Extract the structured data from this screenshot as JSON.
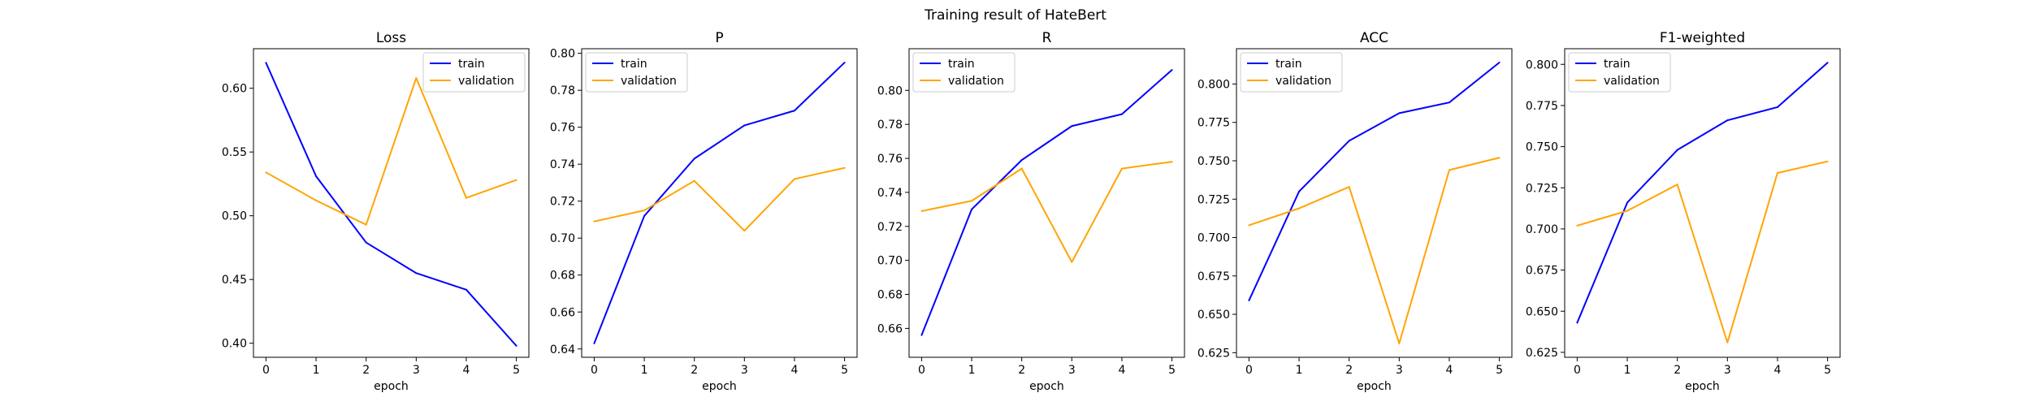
{
  "figure": {
    "title": "Training result of HateBert"
  },
  "colors": {
    "train": "#0000ff",
    "validation": "#ffa500",
    "axes": "#000000",
    "legend_border": "#cccccc"
  },
  "chart_data": [
    {
      "type": "line",
      "title": "Loss",
      "xlabel": "epoch",
      "ylabel": "",
      "x": [
        0,
        1,
        2,
        3,
        4,
        5
      ],
      "xlim": [
        -0.25,
        5.25
      ],
      "ylim": [
        0.389,
        0.631
      ],
      "yticks": [
        0.4,
        0.45,
        0.5,
        0.55,
        0.6
      ],
      "ytick_labels": [
        "0.40",
        "0.45",
        "0.50",
        "0.55",
        "0.60"
      ],
      "legend": "upper right",
      "series": [
        {
          "name": "train",
          "color": "#0000ff",
          "values": [
            0.62,
            0.531,
            0.479,
            0.455,
            0.442,
            0.398
          ]
        },
        {
          "name": "validation",
          "color": "#ffa500",
          "values": [
            0.534,
            0.512,
            0.493,
            0.608,
            0.514,
            0.528
          ]
        }
      ]
    },
    {
      "type": "line",
      "title": "P",
      "xlabel": "epoch",
      "ylabel": "",
      "x": [
        0,
        1,
        2,
        3,
        4,
        5
      ],
      "xlim": [
        -0.25,
        5.25
      ],
      "ylim": [
        0.6355,
        0.8025
      ],
      "yticks": [
        0.64,
        0.66,
        0.68,
        0.7,
        0.72,
        0.74,
        0.76,
        0.78,
        0.8
      ],
      "ytick_labels": [
        "0.64",
        "0.66",
        "0.68",
        "0.70",
        "0.72",
        "0.74",
        "0.76",
        "0.78",
        "0.80"
      ],
      "legend": "upper left",
      "series": [
        {
          "name": "train",
          "color": "#0000ff",
          "values": [
            0.643,
            0.712,
            0.743,
            0.761,
            0.769,
            0.795
          ]
        },
        {
          "name": "validation",
          "color": "#ffa500",
          "values": [
            0.709,
            0.715,
            0.731,
            0.704,
            0.732,
            0.738
          ]
        }
      ]
    },
    {
      "type": "line",
      "title": "R",
      "xlabel": "epoch",
      "ylabel": "",
      "x": [
        0,
        1,
        2,
        3,
        4,
        5
      ],
      "xlim": [
        -0.25,
        5.25
      ],
      "ylim": [
        0.643,
        0.8245
      ],
      "yticks": [
        0.66,
        0.68,
        0.7,
        0.72,
        0.74,
        0.76,
        0.78,
        0.8
      ],
      "ytick_labels": [
        "0.66",
        "0.68",
        "0.70",
        "0.72",
        "0.74",
        "0.76",
        "0.78",
        "0.80"
      ],
      "legend": "upper left",
      "series": [
        {
          "name": "train",
          "color": "#0000ff",
          "values": [
            0.656,
            0.73,
            0.759,
            0.779,
            0.786,
            0.812
          ]
        },
        {
          "name": "validation",
          "color": "#ffa500",
          "values": [
            0.729,
            0.735,
            0.754,
            0.699,
            0.754,
            0.758
          ]
        }
      ]
    },
    {
      "type": "line",
      "title": "ACC",
      "xlabel": "epoch",
      "ylabel": "",
      "x": [
        0,
        1,
        2,
        3,
        4,
        5
      ],
      "xlim": [
        -0.25,
        5.25
      ],
      "ylim": [
        0.622,
        0.823
      ],
      "yticks": [
        0.625,
        0.65,
        0.675,
        0.7,
        0.725,
        0.75,
        0.775,
        0.8
      ],
      "ytick_labels": [
        "0.625",
        "0.650",
        "0.675",
        "0.700",
        "0.725",
        "0.750",
        "0.775",
        "0.800"
      ],
      "legend": "upper left",
      "series": [
        {
          "name": "train",
          "color": "#0000ff",
          "values": [
            0.659,
            0.73,
            0.763,
            0.781,
            0.788,
            0.814
          ]
        },
        {
          "name": "validation",
          "color": "#ffa500",
          "values": [
            0.708,
            0.719,
            0.733,
            0.631,
            0.744,
            0.752
          ]
        }
      ]
    },
    {
      "type": "line",
      "title": "F1-weighted",
      "xlabel": "epoch",
      "ylabel": "",
      "x": [
        0,
        1,
        2,
        3,
        4,
        5
      ],
      "xlim": [
        -0.25,
        5.25
      ],
      "ylim": [
        0.622,
        0.8095
      ],
      "yticks": [
        0.625,
        0.65,
        0.675,
        0.7,
        0.725,
        0.75,
        0.775,
        0.8
      ],
      "ytick_labels": [
        "0.625",
        "0.650",
        "0.675",
        "0.700",
        "0.725",
        "0.750",
        "0.775",
        "0.800"
      ],
      "legend": "upper left",
      "series": [
        {
          "name": "train",
          "color": "#0000ff",
          "values": [
            0.643,
            0.716,
            0.748,
            0.766,
            0.774,
            0.801
          ]
        },
        {
          "name": "validation",
          "color": "#ffa500",
          "values": [
            0.702,
            0.711,
            0.727,
            0.631,
            0.734,
            0.741
          ]
        }
      ]
    }
  ]
}
